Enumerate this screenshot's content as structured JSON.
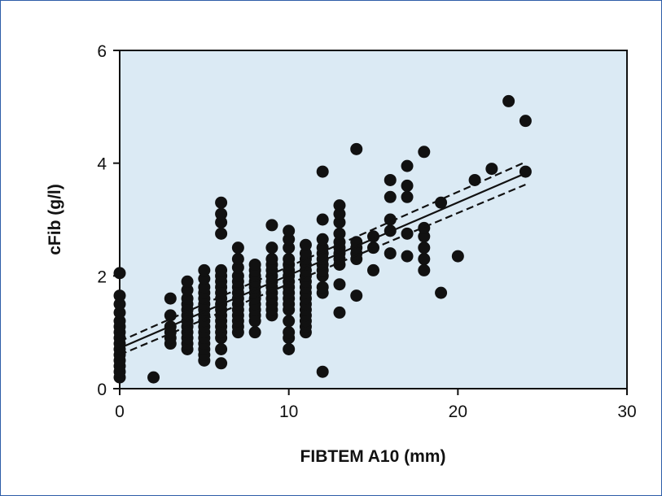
{
  "chart_data": {
    "type": "scatter",
    "xlabel": "FIBTEM A10 (mm)",
    "ylabel": "cFib (g/l)",
    "xlim": [
      0,
      30
    ],
    "ylim": [
      0,
      6
    ],
    "xticks": [
      0,
      10,
      20,
      30
    ],
    "yticks": [
      0,
      2,
      4,
      6
    ],
    "grid": false,
    "background_color": "#dbeaf4",
    "point_color": "#111111",
    "series": [
      {
        "points": [
          [
            0,
            0.2
          ],
          [
            0,
            0.3
          ],
          [
            0,
            0.4
          ],
          [
            0,
            0.5
          ],
          [
            0,
            0.6
          ],
          [
            0,
            0.7
          ],
          [
            0,
            0.8
          ],
          [
            0,
            0.9
          ],
          [
            0,
            1.0
          ],
          [
            0,
            1.1
          ],
          [
            0,
            1.2
          ],
          [
            0,
            1.35
          ],
          [
            0,
            1.5
          ],
          [
            0,
            1.65
          ],
          [
            0,
            2.05
          ],
          [
            2,
            0.2
          ],
          [
            3,
            0.8
          ],
          [
            3,
            0.9
          ],
          [
            3,
            1.0
          ],
          [
            3,
            1.1
          ],
          [
            3,
            1.3
          ],
          [
            3,
            1.6
          ],
          [
            4,
            0.7
          ],
          [
            4,
            0.8
          ],
          [
            4,
            0.9
          ],
          [
            4,
            1.0
          ],
          [
            4,
            1.1
          ],
          [
            4,
            1.2
          ],
          [
            4,
            1.3
          ],
          [
            4,
            1.4
          ],
          [
            4,
            1.5
          ],
          [
            4,
            1.6
          ],
          [
            4,
            1.75
          ],
          [
            4,
            1.9
          ],
          [
            5,
            0.5
          ],
          [
            5,
            0.6
          ],
          [
            5,
            0.7
          ],
          [
            5,
            0.8
          ],
          [
            5,
            0.9
          ],
          [
            5,
            1.0
          ],
          [
            5,
            1.1
          ],
          [
            5,
            1.2
          ],
          [
            5,
            1.3
          ],
          [
            5,
            1.4
          ],
          [
            5,
            1.5
          ],
          [
            5,
            1.6
          ],
          [
            5,
            1.7
          ],
          [
            5,
            1.8
          ],
          [
            5,
            1.95
          ],
          [
            5,
            2.1
          ],
          [
            6,
            0.45
          ],
          [
            6,
            0.7
          ],
          [
            6,
            0.9
          ],
          [
            6,
            1.0
          ],
          [
            6,
            1.1
          ],
          [
            6,
            1.2
          ],
          [
            6,
            1.3
          ],
          [
            6,
            1.4
          ],
          [
            6,
            1.5
          ],
          [
            6,
            1.6
          ],
          [
            6,
            1.7
          ],
          [
            6,
            1.8
          ],
          [
            6,
            1.9
          ],
          [
            6,
            2.0
          ],
          [
            6,
            2.1
          ],
          [
            6,
            2.75
          ],
          [
            6,
            2.95
          ],
          [
            6,
            3.1
          ],
          [
            6,
            3.3
          ],
          [
            7,
            1.0
          ],
          [
            7,
            1.1
          ],
          [
            7,
            1.2
          ],
          [
            7,
            1.3
          ],
          [
            7,
            1.4
          ],
          [
            7,
            1.5
          ],
          [
            7,
            1.6
          ],
          [
            7,
            1.7
          ],
          [
            7,
            1.8
          ],
          [
            7,
            1.9
          ],
          [
            7,
            2.0
          ],
          [
            7,
            2.15
          ],
          [
            7,
            2.3
          ],
          [
            7,
            2.5
          ],
          [
            8,
            1.0
          ],
          [
            8,
            1.2
          ],
          [
            8,
            1.3
          ],
          [
            8,
            1.4
          ],
          [
            8,
            1.5
          ],
          [
            8,
            1.6
          ],
          [
            8,
            1.7
          ],
          [
            8,
            1.8
          ],
          [
            8,
            1.9
          ],
          [
            8,
            2.0
          ],
          [
            8,
            2.1
          ],
          [
            8,
            2.2
          ],
          [
            9,
            1.3
          ],
          [
            9,
            1.4
          ],
          [
            9,
            1.5
          ],
          [
            9,
            1.6
          ],
          [
            9,
            1.7
          ],
          [
            9,
            1.8
          ],
          [
            9,
            1.9
          ],
          [
            9,
            2.0
          ],
          [
            9,
            2.1
          ],
          [
            9,
            2.2
          ],
          [
            9,
            2.3
          ],
          [
            9,
            2.5
          ],
          [
            9,
            2.9
          ],
          [
            10,
            0.7
          ],
          [
            10,
            0.9
          ],
          [
            10,
            1.0
          ],
          [
            10,
            1.2
          ],
          [
            10,
            1.4
          ],
          [
            10,
            1.5
          ],
          [
            10,
            1.6
          ],
          [
            10,
            1.7
          ],
          [
            10,
            1.8
          ],
          [
            10,
            1.9
          ],
          [
            10,
            2.0
          ],
          [
            10,
            2.1
          ],
          [
            10,
            2.2
          ],
          [
            10,
            2.3
          ],
          [
            10,
            2.5
          ],
          [
            10,
            2.65
          ],
          [
            10,
            2.8
          ],
          [
            11,
            1.0
          ],
          [
            11,
            1.1
          ],
          [
            11,
            1.2
          ],
          [
            11,
            1.3
          ],
          [
            11,
            1.4
          ],
          [
            11,
            1.5
          ],
          [
            11,
            1.6
          ],
          [
            11,
            1.7
          ],
          [
            11,
            1.8
          ],
          [
            11,
            1.9
          ],
          [
            11,
            2.0
          ],
          [
            11,
            2.1
          ],
          [
            11,
            2.2
          ],
          [
            11,
            2.3
          ],
          [
            11,
            2.4
          ],
          [
            11,
            2.55
          ],
          [
            12,
            0.3
          ],
          [
            12,
            1.7
          ],
          [
            12,
            1.8
          ],
          [
            12,
            2.0
          ],
          [
            12,
            2.1
          ],
          [
            12,
            2.2
          ],
          [
            12,
            2.3
          ],
          [
            12,
            2.4
          ],
          [
            12,
            2.5
          ],
          [
            12,
            2.65
          ],
          [
            12,
            3.0
          ],
          [
            12,
            3.85
          ],
          [
            13,
            1.35
          ],
          [
            13,
            1.85
          ],
          [
            13,
            2.2
          ],
          [
            13,
            2.3
          ],
          [
            13,
            2.4
          ],
          [
            13,
            2.5
          ],
          [
            13,
            2.6
          ],
          [
            13,
            2.75
          ],
          [
            13,
            2.95
          ],
          [
            13,
            3.1
          ],
          [
            13,
            3.25
          ],
          [
            14,
            1.65
          ],
          [
            14,
            2.3
          ],
          [
            14,
            2.4
          ],
          [
            14,
            2.5
          ],
          [
            14,
            2.6
          ],
          [
            14,
            4.25
          ],
          [
            15,
            2.1
          ],
          [
            15,
            2.5
          ],
          [
            15,
            2.7
          ],
          [
            16,
            2.4
          ],
          [
            16,
            2.8
          ],
          [
            16,
            3.0
          ],
          [
            16,
            3.4
          ],
          [
            16,
            3.7
          ],
          [
            17,
            2.35
          ],
          [
            17,
            2.75
          ],
          [
            17,
            3.4
          ],
          [
            17,
            3.6
          ],
          [
            17,
            3.95
          ],
          [
            18,
            2.1
          ],
          [
            18,
            2.3
          ],
          [
            18,
            2.5
          ],
          [
            18,
            2.7
          ],
          [
            18,
            2.85
          ],
          [
            18,
            4.2
          ],
          [
            19,
            1.7
          ],
          [
            19,
            3.3
          ],
          [
            20,
            2.35
          ],
          [
            21,
            3.7
          ],
          [
            22,
            3.9
          ],
          [
            23,
            5.1
          ],
          [
            24,
            3.85
          ],
          [
            24,
            4.75
          ]
        ]
      }
    ],
    "regression": {
      "fit": [
        [
          0,
          0.72
        ],
        [
          24,
          3.82
        ]
      ],
      "upper_ci": [
        [
          0,
          0.84
        ],
        [
          24,
          4.02
        ]
      ],
      "lower_ci": [
        [
          0,
          0.6
        ],
        [
          24,
          3.62
        ]
      ]
    }
  }
}
